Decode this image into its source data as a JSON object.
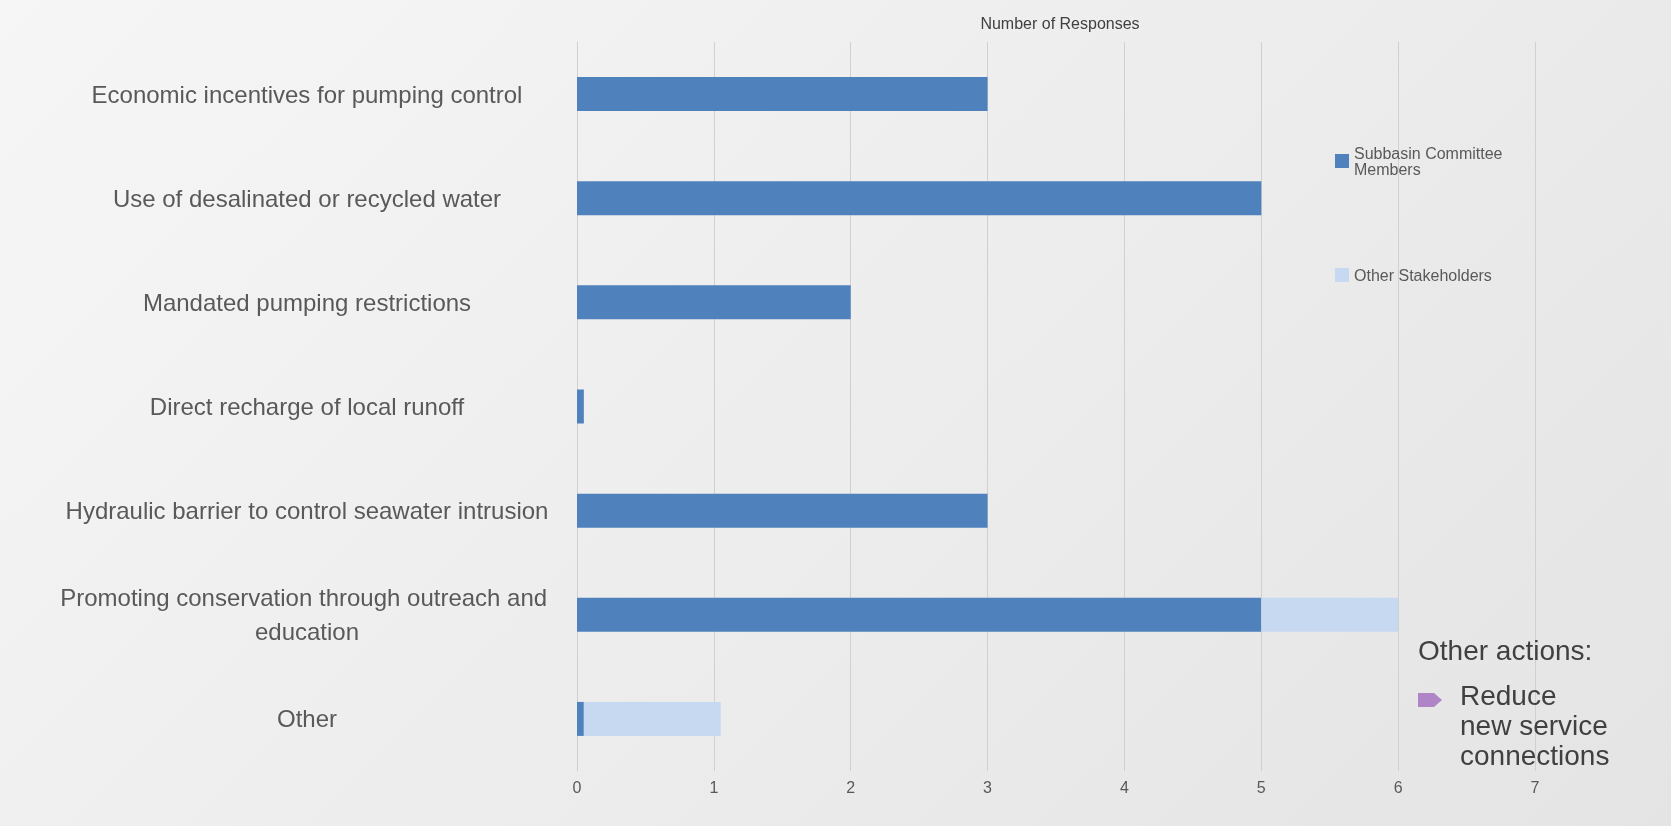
{
  "chart_data": {
    "type": "bar",
    "orientation": "horizontal",
    "stacked": true,
    "title": "Number of Responses",
    "categories": [
      "Economic incentives for pumping control",
      "Use of desalinated or recycled water",
      "Mandated pumping restrictions",
      "Direct recharge of local runoff",
      "Hydraulic barrier to control seawater intrusion",
      "Promoting conservation through outreach and education",
      "Other"
    ],
    "series": [
      {
        "name": "Subbasin Committee Members",
        "color": "#4f81bd",
        "values": [
          3,
          5,
          2,
          0.05,
          3,
          5,
          0.05
        ]
      },
      {
        "name": "Other Stakeholders",
        "color": "#c6d9f0",
        "values": [
          0,
          0,
          0,
          0,
          0,
          1,
          1
        ]
      }
    ],
    "xlim": [
      0,
      7
    ],
    "xticks": [
      0,
      1,
      2,
      3,
      4,
      5,
      6,
      7
    ],
    "grid": "x",
    "legend": "right",
    "annotations": [
      "Other actions:",
      "Reduce new service connections"
    ]
  }
}
